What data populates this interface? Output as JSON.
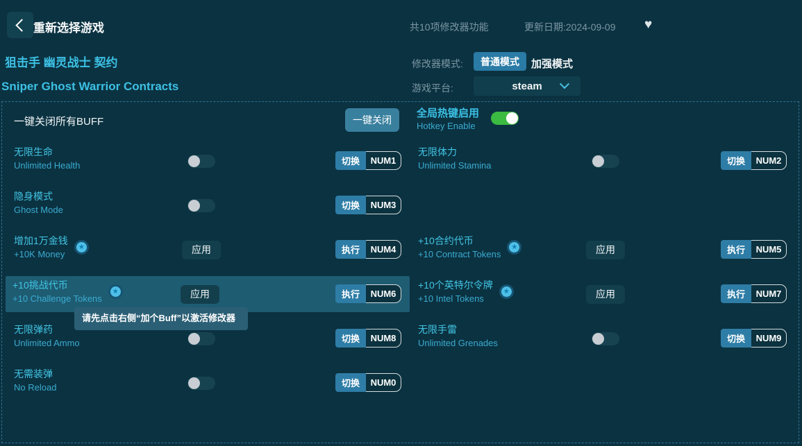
{
  "header": {
    "title": "重新选择游戏",
    "stats": "共10项修改器功能",
    "updated": "更新日期:2024-09-09"
  },
  "icons": {
    "heart": "♥",
    "star": "★"
  },
  "game": {
    "title_cn": "狙击手 幽灵战士 契约",
    "title_en": "Sniper Ghost Warrior Contracts"
  },
  "mode": {
    "label": "修改器模式:",
    "selected": "普通模式",
    "alternate": "加强模式"
  },
  "platform": {
    "label": "游戏平台:",
    "value": "steam"
  },
  "panel": {
    "close_all_label": "一键关闭所有BUFF",
    "close_all_button": "一键关闭",
    "hotkey_enable_cn": "全局热键启用",
    "hotkey_enable_en": "Hotkey Enable",
    "hotkey_enabled": true
  },
  "tooltip": {
    "text": "请先点击右侧“加个Buff”以激活修改器"
  },
  "colors": {
    "background": "#0b3241",
    "accent_cyan": "#3cc0e4",
    "button_teal": "#2e7da6",
    "toggle_on_green": "#3cbb43",
    "row_highlight": "#1e5c72"
  },
  "cheats": [
    {
      "cn": "无限生命",
      "en": "Unlimited Health",
      "type": "toggle",
      "on": false,
      "star": false,
      "action": "切换",
      "key": "NUM1",
      "col": "left",
      "row": 0,
      "highlight": false
    },
    {
      "cn": "无限体力",
      "en": "Unlimited Stamina",
      "type": "toggle",
      "on": false,
      "star": false,
      "action": "切换",
      "key": "NUM2",
      "col": "right",
      "row": 0,
      "highlight": false
    },
    {
      "cn": "隐身模式",
      "en": "Ghost Mode",
      "type": "toggle",
      "on": false,
      "star": false,
      "action": "切换",
      "key": "NUM3",
      "col": "left",
      "row": 1,
      "highlight": false
    },
    {
      "cn": "增加1万金钱",
      "en": "+10K Money",
      "type": "action",
      "apply": "应用",
      "star": true,
      "action": "执行",
      "key": "NUM4",
      "col": "left",
      "row": 2,
      "highlight": false
    },
    {
      "cn": "+10合约代币",
      "en": "+10 Contract Tokens",
      "type": "action",
      "apply": "应用",
      "star": true,
      "action": "执行",
      "key": "NUM5",
      "col": "right",
      "row": 2,
      "highlight": false
    },
    {
      "cn": "+10挑战代币",
      "en": "+10 Challenge Tokens",
      "type": "action",
      "apply": "应用",
      "star": true,
      "action": "执行",
      "key": "NUM6",
      "col": "left",
      "row": 3,
      "highlight": true
    },
    {
      "cn": "+10个英特尔令牌",
      "en": "+10 Intel Tokens",
      "type": "action",
      "apply": "应用",
      "star": true,
      "action": "执行",
      "key": "NUM7",
      "col": "right",
      "row": 3,
      "highlight": false
    },
    {
      "cn": "无限弹药",
      "en": "Unlimited Ammo",
      "type": "toggle",
      "on": false,
      "star": false,
      "action": "切换",
      "key": "NUM8",
      "col": "left",
      "row": 4,
      "highlight": false
    },
    {
      "cn": "无限手雷",
      "en": "Unlimited Grenades",
      "type": "toggle",
      "on": false,
      "star": false,
      "action": "切换",
      "key": "NUM9",
      "col": "right",
      "row": 4,
      "highlight": false
    },
    {
      "cn": "无需装弹",
      "en": "No Reload",
      "type": "toggle",
      "on": false,
      "star": false,
      "action": "切换",
      "key": "NUM0",
      "col": "left",
      "row": 5,
      "highlight": false
    }
  ]
}
